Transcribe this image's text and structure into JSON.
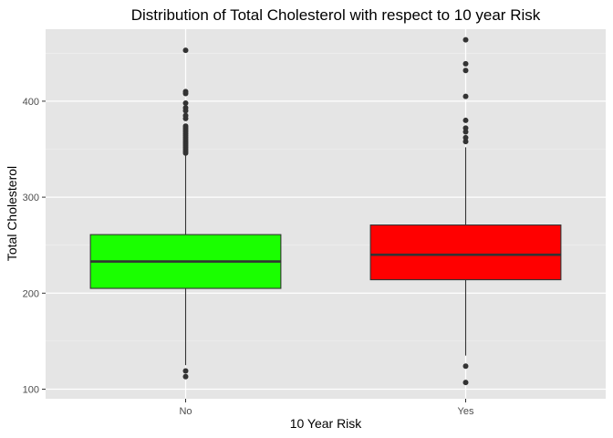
{
  "chart_data": {
    "type": "box",
    "title": "Distribution of Total Cholesterol with respect to 10 year Risk",
    "xlabel": "10 Year Risk",
    "ylabel": "Total Cholesterol",
    "categories": [
      "No",
      "Yes"
    ],
    "ylim": [
      90,
      475
    ],
    "yticks": [
      100,
      200,
      300,
      400
    ],
    "ytick_labels": [
      "100",
      "200",
      "300",
      "400"
    ],
    "grid": true,
    "background": "#e5e5e5",
    "grid_color": "#ffffff",
    "boxes": [
      {
        "category": "No",
        "fill": "#1aff00",
        "whisker_low": 125,
        "q1": 205,
        "median": 233,
        "q3": 261,
        "whisker_high": 345,
        "outliers": [
          113,
          119,
          346,
          348,
          350,
          352,
          354,
          356,
          358,
          360,
          362,
          364,
          366,
          368,
          370,
          372,
          374,
          382,
          385,
          390,
          393,
          398,
          408,
          410,
          453
        ]
      },
      {
        "category": "Yes",
        "fill": "#ff0000",
        "whisker_low": 135,
        "q1": 214,
        "median": 240,
        "q3": 271,
        "whisker_high": 352,
        "outliers": [
          107,
          124,
          358,
          362,
          368,
          372,
          380,
          405,
          432,
          439,
          464
        ]
      }
    ]
  }
}
